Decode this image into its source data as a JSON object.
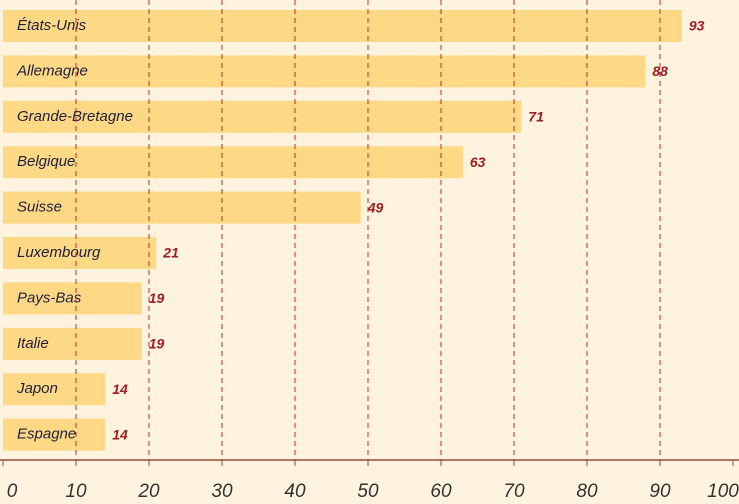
{
  "chart_data": {
    "type": "bar",
    "orientation": "horizontal",
    "categories": [
      "États-Unis",
      "Allemagne",
      "Grande-Bretagne",
      "Belgique",
      "Suisse",
      "Luxembourg",
      "Pays-Bas",
      "Italie",
      "Japon",
      "Espagne"
    ],
    "values": [
      93,
      88,
      71,
      63,
      49,
      21,
      19,
      19,
      14,
      14
    ],
    "color": "#fdd985",
    "xlim": [
      0,
      100
    ],
    "xticks": [
      0,
      10,
      20,
      30,
      40,
      50,
      60,
      70,
      80,
      90,
      100
    ],
    "grid": true,
    "grid_color": "#c8282d",
    "value_label_color": "#9e1b1e"
  }
}
